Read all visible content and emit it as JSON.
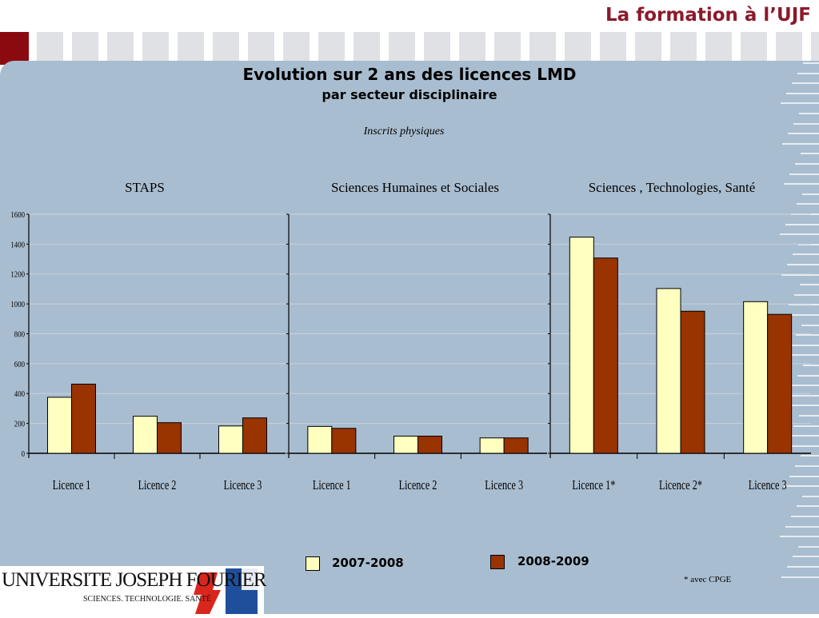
{
  "header": {
    "title": "La formation à l’UJF"
  },
  "chart": {
    "title": "Evolution sur 2 ans des licences LMD",
    "subtitle": "par secteur disciplinaire",
    "note": "Inscrits physiques",
    "footnote": "* avec CPGE"
  },
  "legend": [
    {
      "label": "2007-2008",
      "color": "#ffffc0"
    },
    {
      "label": "2008-2009",
      "color": "#993300"
    }
  ],
  "logo": {
    "name": "UNIVERSITE JOSEPH FOURIER",
    "tagline": "SCIENCES. TECHNOLOGIE. SANTÉ"
  },
  "chart_data": [
    {
      "type": "bar",
      "title": "STAPS",
      "categories": [
        "Licence 1",
        "Licence 2",
        "Licence 3"
      ],
      "series": [
        {
          "name": "2007-2008",
          "values": [
            375,
            248,
            183
          ]
        },
        {
          "name": "2008-2009",
          "values": [
            463,
            205,
            237
          ]
        }
      ],
      "ylim": [
        0,
        1600
      ],
      "yticks": [
        0,
        200,
        400,
        600,
        800,
        1000,
        1200,
        1400,
        1600
      ]
    },
    {
      "type": "bar",
      "title": "Sciences Humaines et Sociales",
      "categories": [
        "Licence 1",
        "Licence 2",
        "Licence 3"
      ],
      "series": [
        {
          "name": "2007-2008",
          "values": [
            180,
            115,
            103
          ]
        },
        {
          "name": "2008-2009",
          "values": [
            167,
            115,
            103
          ]
        }
      ],
      "ylim": [
        0,
        1600
      ]
    },
    {
      "type": "bar",
      "title": "Sciences , Technologies, Santé",
      "categories": [
        "Licence 1*",
        "Licence 2*",
        "Licence 3"
      ],
      "series": [
        {
          "name": "2007-2008",
          "values": [
            1447,
            1103,
            1015
          ]
        },
        {
          "name": "2008-2009",
          "values": [
            1307,
            951,
            930
          ]
        }
      ],
      "ylim": [
        0,
        1600
      ]
    }
  ]
}
